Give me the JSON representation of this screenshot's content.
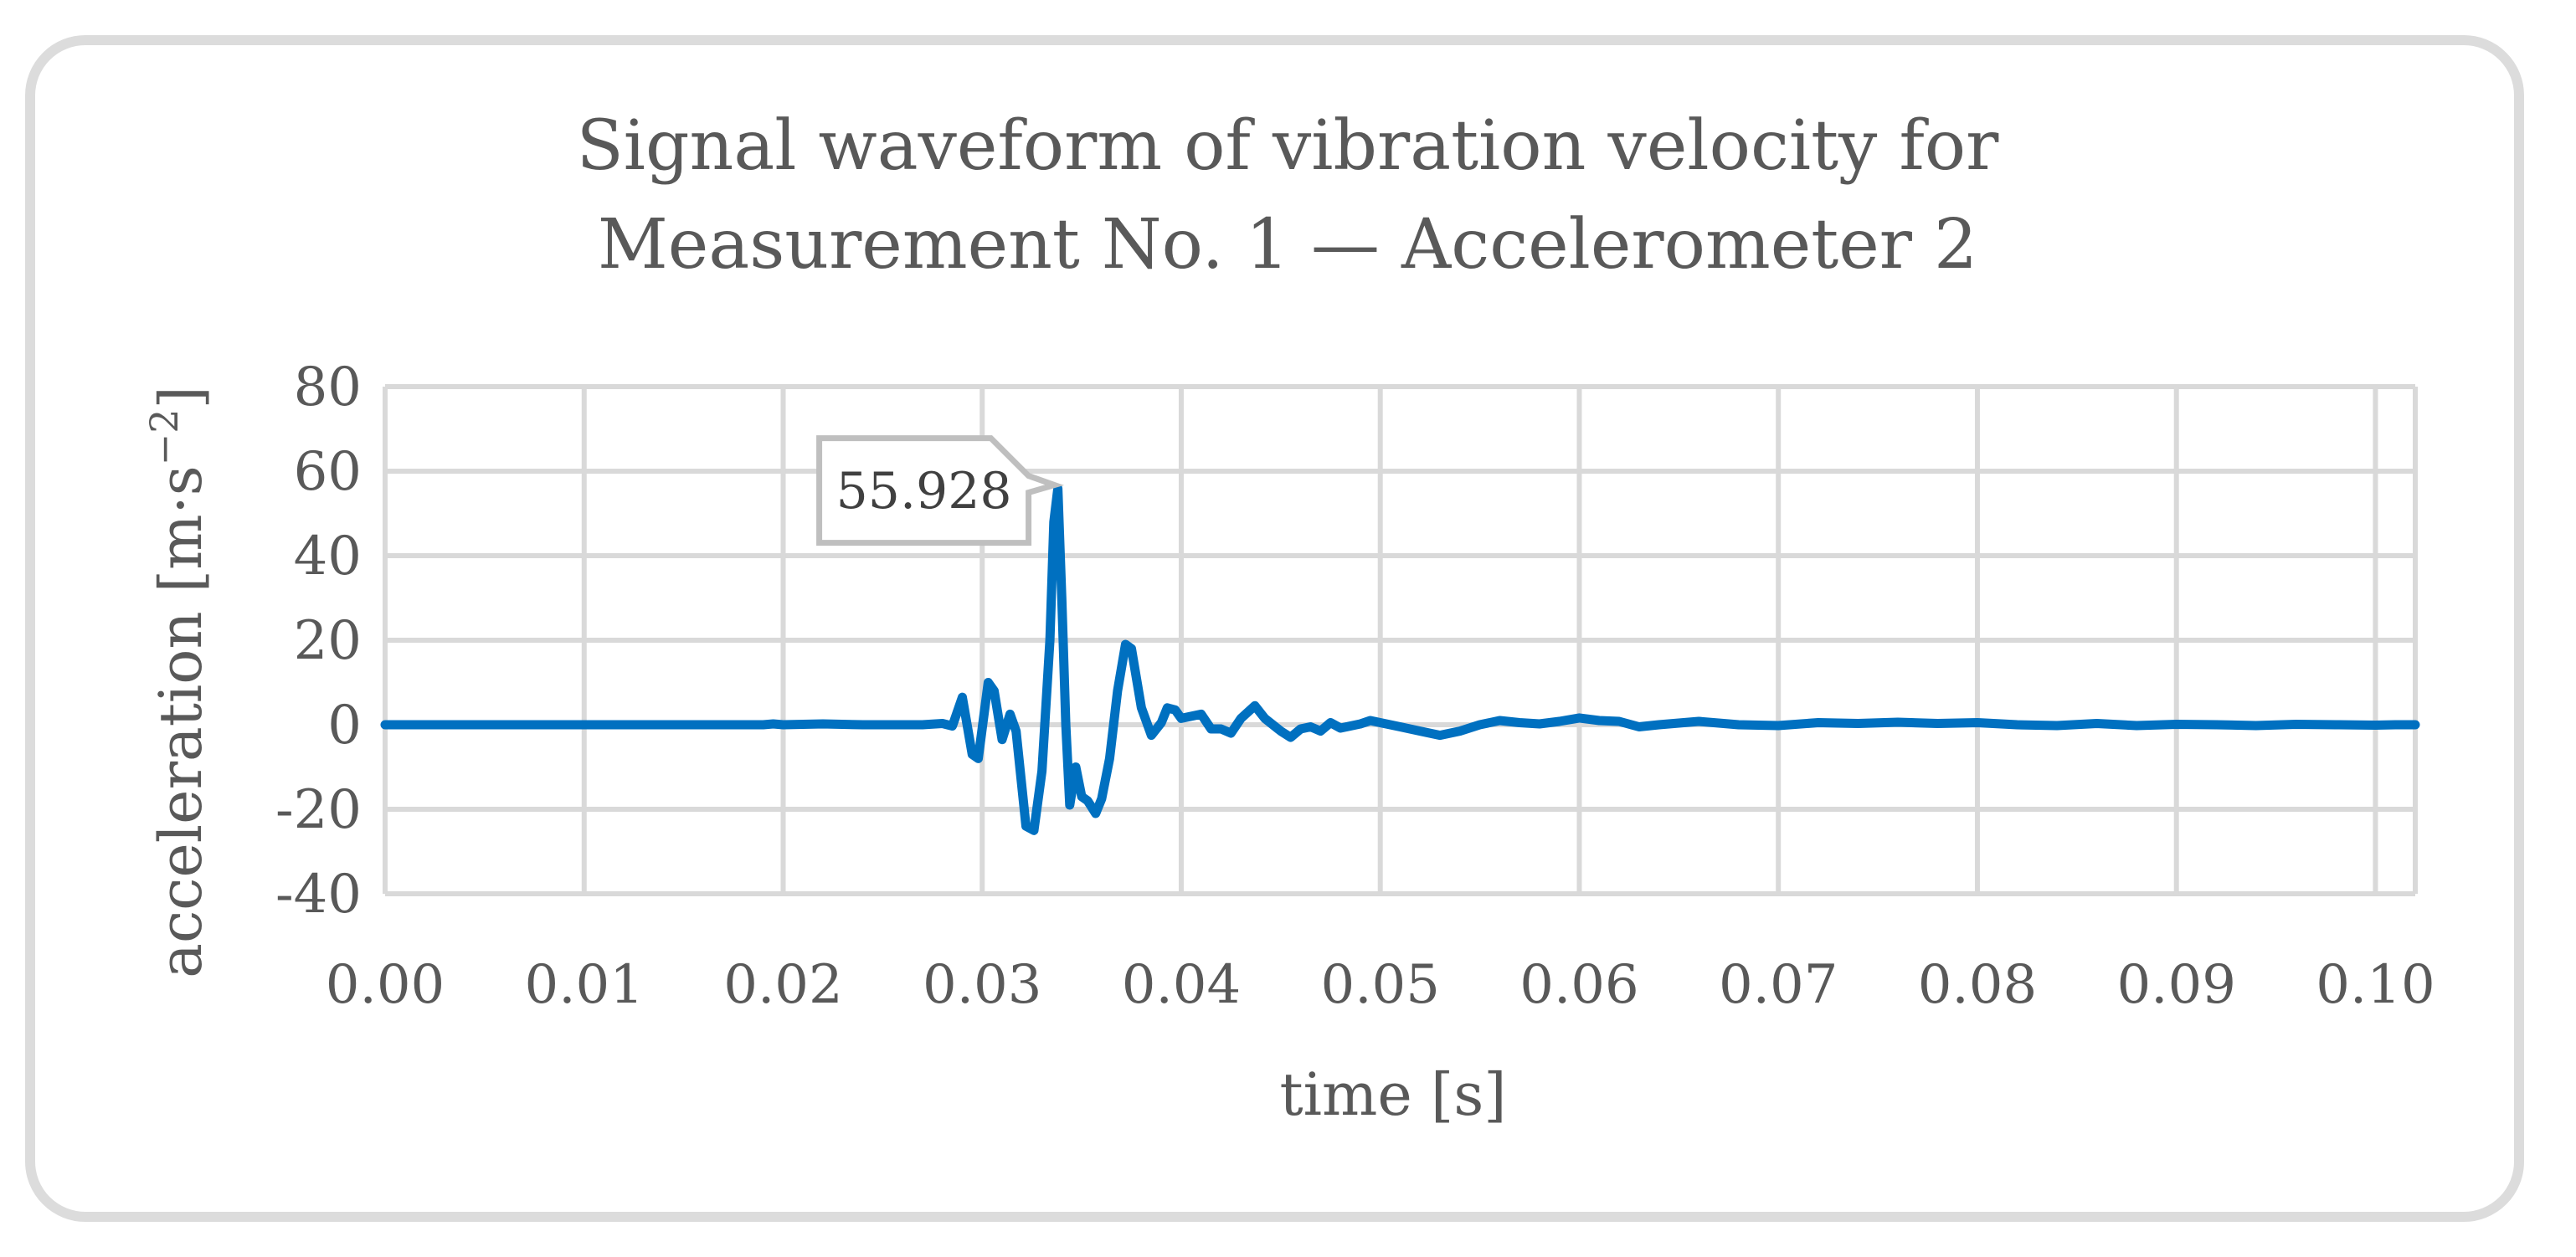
{
  "chart_data": {
    "type": "line",
    "title": [
      "Signal waveform of vibration velocity for",
      "Measurement No. 1 — Accelerometer 2"
    ],
    "xlabel": "time [s]",
    "ylabel": "acceleration [m·s",
    "ylabel_sup": "−2",
    "ylabel_end": "]",
    "xlim": [
      0,
      0.102
    ],
    "ylim": [
      -40,
      80
    ],
    "xticks": [
      0.0,
      0.01,
      0.02,
      0.03,
      0.04,
      0.05,
      0.06,
      0.07,
      0.08,
      0.09,
      0.1
    ],
    "xtick_labels": [
      "0.00",
      "0.01",
      "0.02",
      "0.03",
      "0.04",
      "0.05",
      "0.06",
      "0.07",
      "0.08",
      "0.09",
      "0.10"
    ],
    "yticks": [
      -40,
      -20,
      0,
      20,
      40,
      60,
      80
    ],
    "ytick_labels": [
      "-40",
      "-20",
      "0",
      "20",
      "40",
      "60",
      "80"
    ],
    "grid": true,
    "line_color": "#0070c0",
    "annotation": {
      "text": "55.928",
      "x": 0.0338,
      "y": 55.928
    },
    "series": [
      {
        "name": "Accelerometer 2",
        "points": [
          [
            0.0,
            0
          ],
          [
            0.01,
            0
          ],
          [
            0.019,
            0
          ],
          [
            0.0195,
            0.2
          ],
          [
            0.02,
            0
          ],
          [
            0.022,
            0.2
          ],
          [
            0.024,
            0
          ],
          [
            0.027,
            0
          ],
          [
            0.028,
            0.3
          ],
          [
            0.0285,
            -0.3
          ],
          [
            0.029,
            6.5
          ],
          [
            0.0295,
            -7
          ],
          [
            0.0298,
            -8
          ],
          [
            0.0303,
            10
          ],
          [
            0.0306,
            8
          ],
          [
            0.031,
            -3.5
          ],
          [
            0.0314,
            2.5
          ],
          [
            0.0317,
            -1.5
          ],
          [
            0.0322,
            -24
          ],
          [
            0.0326,
            -25
          ],
          [
            0.033,
            -11
          ],
          [
            0.0334,
            20
          ],
          [
            0.0336,
            48
          ],
          [
            0.0338,
            55.928
          ],
          [
            0.034,
            30
          ],
          [
            0.0342,
            0
          ],
          [
            0.0344,
            -19
          ],
          [
            0.0347,
            -10
          ],
          [
            0.035,
            -17
          ],
          [
            0.0353,
            -18
          ],
          [
            0.0357,
            -21
          ],
          [
            0.036,
            -17.5
          ],
          [
            0.0364,
            -8
          ],
          [
            0.0368,
            8
          ],
          [
            0.0372,
            19
          ],
          [
            0.0375,
            18
          ],
          [
            0.038,
            4
          ],
          [
            0.0385,
            -2.5
          ],
          [
            0.039,
            0.5
          ],
          [
            0.0393,
            4
          ],
          [
            0.0397,
            3.5
          ],
          [
            0.04,
            1.5
          ],
          [
            0.0405,
            2
          ],
          [
            0.041,
            2.5
          ],
          [
            0.0415,
            -1
          ],
          [
            0.042,
            -1
          ],
          [
            0.0425,
            -2
          ],
          [
            0.043,
            1.5
          ],
          [
            0.0437,
            4.5
          ],
          [
            0.0442,
            1.5
          ],
          [
            0.045,
            -1.5
          ],
          [
            0.0455,
            -3
          ],
          [
            0.046,
            -1
          ],
          [
            0.0465,
            -0.5
          ],
          [
            0.047,
            -1.5
          ],
          [
            0.0475,
            0.5
          ],
          [
            0.048,
            -0.8
          ],
          [
            0.0485,
            -0.3
          ],
          [
            0.049,
            0.2
          ],
          [
            0.0495,
            1
          ],
          [
            0.05,
            0.5
          ],
          [
            0.0505,
            0
          ],
          [
            0.051,
            -0.5
          ],
          [
            0.052,
            -1.5
          ],
          [
            0.053,
            -2.5
          ],
          [
            0.054,
            -1.5
          ],
          [
            0.055,
            0
          ],
          [
            0.056,
            1
          ],
          [
            0.057,
            0.5
          ],
          [
            0.058,
            0.2
          ],
          [
            0.059,
            0.8
          ],
          [
            0.06,
            1.6
          ],
          [
            0.061,
            1
          ],
          [
            0.062,
            0.8
          ],
          [
            0.063,
            -0.5
          ],
          [
            0.064,
            0
          ],
          [
            0.066,
            0.8
          ],
          [
            0.068,
            0
          ],
          [
            0.07,
            -0.2
          ],
          [
            0.072,
            0.5
          ],
          [
            0.074,
            0.3
          ],
          [
            0.076,
            0.6
          ],
          [
            0.078,
            0.3
          ],
          [
            0.08,
            0.5
          ],
          [
            0.082,
            0
          ],
          [
            0.084,
            -0.2
          ],
          [
            0.086,
            0.3
          ],
          [
            0.088,
            -0.2
          ],
          [
            0.09,
            0.1
          ],
          [
            0.092,
            0
          ],
          [
            0.094,
            -0.2
          ],
          [
            0.096,
            0.1
          ],
          [
            0.098,
            0
          ],
          [
            0.1,
            -0.1
          ],
          [
            0.101,
            0
          ],
          [
            0.102,
            0
          ]
        ]
      }
    ]
  }
}
